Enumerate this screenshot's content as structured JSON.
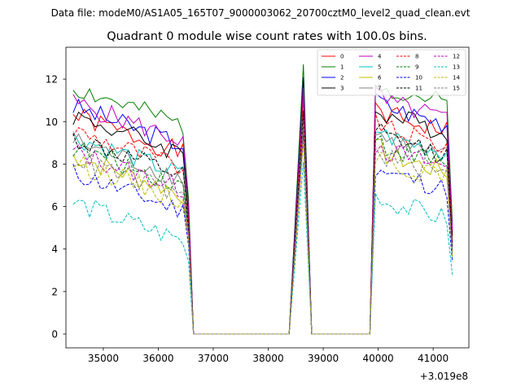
{
  "header": {
    "data_file": "Data file: modeM0/AS1A05_165T07_9000003062_20700cztM0_level2_quad_clean.evt"
  },
  "chart_data": {
    "type": "line",
    "title": "Quadrant 0 module wise count rates with 100.0s bins.",
    "xlabel": "",
    "ylabel": "",
    "x_offset_label": "+3.019e8",
    "xlim": [
      34320,
      41650
    ],
    "ylim": [
      -0.65,
      13.5
    ],
    "xticks": [
      35000,
      36000,
      37000,
      38000,
      39000,
      40000,
      41000
    ],
    "xtick_labels": [
      "35000",
      "36000",
      "37000",
      "38000",
      "39000",
      "40000",
      "41000"
    ],
    "yticks": [
      0,
      2,
      4,
      6,
      8,
      10,
      12
    ],
    "ytick_labels": [
      "0",
      "2",
      "4",
      "6",
      "8",
      "10",
      "12"
    ],
    "legend_position": "top-right",
    "legend_columns": 4,
    "series": [
      {
        "name": "0",
        "color": "#ff0000",
        "dash": "solid",
        "base": 10.3,
        "peak": 11.2,
        "seed": 1
      },
      {
        "name": "1",
        "color": "#008000",
        "dash": "solid",
        "base": 11.6,
        "peak": 12.7,
        "seed": 2
      },
      {
        "name": "2",
        "color": "#0000ff",
        "dash": "solid",
        "base": 10.7,
        "peak": 12.1,
        "seed": 3
      },
      {
        "name": "3",
        "color": "#000000",
        "dash": "solid",
        "base": 10.3,
        "peak": 11.9,
        "seed": 4
      },
      {
        "name": "4",
        "color": "#bf00bf",
        "dash": "solid",
        "base": 10.9,
        "peak": 11.6,
        "seed": 5
      },
      {
        "name": "5",
        "color": "#00bfbf",
        "dash": "solid",
        "base": 9.3,
        "peak": 10.6,
        "seed": 6
      },
      {
        "name": "6",
        "color": "#bfbf00",
        "dash": "solid",
        "base": 8.4,
        "peak": 9.6,
        "seed": 7
      },
      {
        "name": "7",
        "color": "#808080",
        "dash": "solid",
        "base": 9.1,
        "peak": 10.2,
        "seed": 8
      },
      {
        "name": "8",
        "color": "#ff0000",
        "dash": "dashed",
        "base": 9.6,
        "peak": 10.9,
        "seed": 9
      },
      {
        "name": "9",
        "color": "#008000",
        "dash": "dashed",
        "base": 8.8,
        "peak": 9.8,
        "seed": 10
      },
      {
        "name": "10",
        "color": "#0000ff",
        "dash": "dashed",
        "base": 7.6,
        "peak": 9.3,
        "seed": 11
      },
      {
        "name": "11",
        "color": "#000000",
        "dash": "dashed",
        "base": 9.2,
        "peak": 10.5,
        "seed": 12
      },
      {
        "name": "12",
        "color": "#bf00bf",
        "dash": "dashed",
        "base": 8.6,
        "peak": 9.4,
        "seed": 13
      },
      {
        "name": "13",
        "color": "#00bfbf",
        "dash": "dashed",
        "base": 6.2,
        "peak": 8.1,
        "seed": 14
      },
      {
        "name": "14",
        "color": "#bfbf00",
        "dash": "dashed",
        "base": 8.1,
        "peak": 9.1,
        "seed": 15
      },
      {
        "name": "15",
        "color": "#808080",
        "dash": "dashed",
        "base": 8.3,
        "peak": 9.9,
        "seed": 16
      }
    ]
  }
}
